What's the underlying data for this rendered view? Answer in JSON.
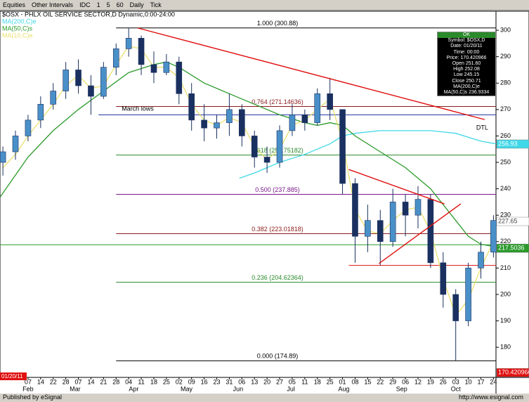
{
  "toolbar": {
    "items": [
      "Equities",
      "Other Intervals",
      "IDC",
      "1",
      "5",
      "60",
      "Daily",
      "Tick"
    ]
  },
  "chart_data": {
    "type": "candlestick",
    "title": "$OSX - PHLX OIL SERVICE SECTOR,D Dynamic,0:00-24:00",
    "cursor_date": "01/20/11",
    "up_color": "#4a90c8",
    "down_color": "#1a3060",
    "x": [
      -2,
      -1,
      0,
      1,
      2,
      3,
      4,
      5,
      6,
      7,
      8,
      9,
      10,
      11,
      12,
      13,
      14,
      15,
      16,
      17,
      18,
      19,
      20,
      21,
      22,
      23,
      24,
      25,
      26,
      27,
      28,
      29,
      30,
      31,
      32,
      33,
      34,
      35,
      36,
      37
    ],
    "open": [
      250,
      254,
      260,
      266,
      272,
      277,
      285,
      279,
      275,
      286,
      293,
      297,
      287,
      284,
      288,
      276,
      266,
      263,
      265,
      270,
      260,
      252,
      250,
      262,
      268,
      265,
      276,
      270,
      242,
      222,
      228,
      220,
      235,
      230,
      236,
      212,
      200,
      190,
      210,
      216
    ],
    "high": [
      256,
      262,
      268,
      275,
      280,
      288,
      289,
      283,
      288,
      295,
      301,
      298,
      292,
      291,
      290,
      280,
      272,
      268,
      276,
      272,
      262,
      256,
      264,
      272,
      270,
      278,
      282,
      270,
      244,
      234,
      232,
      240,
      238,
      241,
      238,
      216,
      202,
      212,
      220,
      230
    ],
    "low": [
      245,
      251,
      258,
      263,
      270,
      274,
      276,
      268,
      274,
      283,
      290,
      283,
      280,
      283,
      272,
      262,
      258,
      259,
      260,
      256,
      248,
      246,
      248,
      260,
      262,
      264,
      266,
      238,
      212,
      216,
      211,
      218,
      222,
      225,
      210,
      195,
      175,
      188,
      206,
      214
    ],
    "close": [
      254,
      260,
      266,
      272,
      277,
      285,
      279,
      275,
      286,
      293,
      297,
      287,
      284,
      288,
      276,
      266,
      263,
      265,
      270,
      260,
      252,
      250,
      262,
      268,
      265,
      276,
      270,
      242,
      222,
      228,
      220,
      235,
      230,
      236,
      212,
      200,
      190,
      210,
      216,
      228
    ],
    "series": [
      {
        "name": "MA(200,C)e",
        "color": "#40d8e8",
        "x": [
          16.8,
          18,
          20,
          22,
          24,
          25,
          26,
          28,
          30,
          32,
          34,
          36,
          37.2
        ],
        "values": [
          244,
          246,
          250,
          253,
          257,
          260,
          261,
          262,
          262,
          262,
          261,
          258,
          257
        ]
      },
      {
        "name": "MA(50,C)s",
        "color": "#2a9a2a",
        "x": [
          -2.2,
          0,
          2,
          4,
          6,
          8,
          10,
          11,
          12,
          14,
          16,
          18,
          20,
          22,
          23,
          24,
          25,
          26,
          28,
          30,
          32,
          34,
          35,
          36,
          37.2
        ],
        "values": [
          237,
          252,
          262,
          270,
          277,
          284,
          287,
          288,
          286,
          280,
          276,
          272,
          268,
          265,
          264,
          265,
          264,
          260,
          254,
          248,
          240,
          228,
          222,
          219,
          218
        ]
      },
      {
        "name": "MA(10,C)e",
        "color": "#e8e070",
        "x": [
          -2,
          -1,
          0,
          1,
          2,
          3,
          4,
          5,
          6,
          7,
          8,
          9,
          10,
          11,
          12,
          13,
          14,
          15,
          16,
          17,
          18,
          19,
          20,
          21,
          22,
          23,
          24,
          25,
          26,
          27,
          28,
          29,
          30,
          31,
          32,
          33,
          34,
          35,
          36,
          37
        ],
        "values": [
          248,
          253,
          260,
          266,
          272,
          279,
          283,
          278,
          279,
          287,
          294,
          293,
          286,
          286,
          282,
          272,
          266,
          264,
          267,
          265,
          256,
          251,
          255,
          264,
          266,
          270,
          274,
          258,
          232,
          224,
          223,
          228,
          232,
          233,
          224,
          206,
          192,
          198,
          210,
          220
        ]
      }
    ],
    "levels_start": 7.0,
    "levels": [
      {
        "label": "1.000 (300.88)",
        "value": 300.88,
        "color": "#000000"
      },
      {
        "label": "0.764 (271.14636)",
        "value": 271.14636,
        "color": "#8b1a1a"
      },
      {
        "label": "0.618 (252.75182)",
        "value": 252.75182,
        "color": "#2a8a2a"
      },
      {
        "label": "0.500 (237.885)",
        "value": 237.885,
        "color": "#7a1a8a"
      },
      {
        "label": "0.382 (223.01818)",
        "value": 223.01818,
        "color": "#8b1a1a"
      },
      {
        "label": "0.236 (204.62364)",
        "value": 204.62364,
        "color": "#2a8a2a"
      },
      {
        "label": "0.000 (174.89)",
        "value": 174.89,
        "color": "#000000"
      }
    ],
    "hlines": [
      {
        "label": "March lows",
        "value": 268,
        "color": "#2030a0",
        "start": 5.6
      },
      {
        "value": 218.8,
        "color": "#2a9a2a",
        "start": -2.23
      },
      {
        "value": 211,
        "color": "#e01010",
        "start": 25.5
      }
    ],
    "trendlines": [
      {
        "label": "DTL",
        "color": "#e01010",
        "x": [
          8.7,
          36.3
        ],
        "y": [
          300.88,
          266.2
        ]
      },
      {
        "color": "#e01010",
        "x": [
          25.5,
          33.1
        ],
        "y": [
          247.3,
          234.3
        ]
      },
      {
        "color": "#e01010",
        "x": [
          27.9,
          34.4
        ],
        "y": [
          211.7,
          234.3
        ]
      }
    ],
    "price_labels": [
      {
        "value": 256.93,
        "color": "#40d8e8"
      },
      {
        "value": 227.65,
        "color": "#ffffff"
      },
      {
        "value": 217.5036,
        "color": "#2a9a2a"
      },
      {
        "value": 170.420966,
        "color": "#e01010"
      }
    ],
    "xlim": [
      -2.23,
      37.2
    ],
    "ylim": [
      168.6,
      307.2
    ],
    "yticks": [
      180,
      190,
      200,
      210,
      220,
      230,
      240,
      250,
      260,
      270,
      280,
      290,
      300
    ],
    "xticks": [
      {
        "value": 0,
        "label": "07"
      },
      {
        "value": 1,
        "label": "14"
      },
      {
        "value": 2,
        "label": "22"
      },
      {
        "value": 3,
        "label": "28"
      },
      {
        "value": 4,
        "label": "07"
      },
      {
        "value": 5,
        "label": "14"
      },
      {
        "value": 6,
        "label": "21"
      },
      {
        "value": 7,
        "label": "28"
      },
      {
        "value": 8,
        "label": "04"
      },
      {
        "value": 9,
        "label": "11"
      },
      {
        "value": 10,
        "label": "18"
      },
      {
        "value": 11,
        "label": "25"
      },
      {
        "value": 12,
        "label": "02"
      },
      {
        "value": 13,
        "label": "09"
      },
      {
        "value": 14,
        "label": "16"
      },
      {
        "value": 15,
        "label": "23"
      },
      {
        "value": 16,
        "label": "31"
      },
      {
        "value": 17,
        "label": "06"
      },
      {
        "value": 18,
        "label": "13"
      },
      {
        "value": 19,
        "label": "20"
      },
      {
        "value": 20,
        "label": "27"
      },
      {
        "value": 21,
        "label": "05"
      },
      {
        "value": 22,
        "label": "11"
      },
      {
        "value": 23,
        "label": "18"
      },
      {
        "value": 24,
        "label": "25"
      },
      {
        "value": 25,
        "label": "01"
      },
      {
        "value": 26,
        "label": "08"
      },
      {
        "value": 27,
        "label": "15"
      },
      {
        "value": 28,
        "label": "22"
      },
      {
        "value": 29,
        "label": "29"
      },
      {
        "value": 30,
        "label": "06"
      },
      {
        "value": 31,
        "label": "12"
      },
      {
        "value": 32,
        "label": "19"
      },
      {
        "value": 33,
        "label": "26"
      },
      {
        "value": 34,
        "label": "03"
      },
      {
        "value": 35,
        "label": "10"
      },
      {
        "value": 36,
        "label": "17"
      },
      {
        "value": 37,
        "label": "24"
      }
    ],
    "month_labels": [
      {
        "value": 0,
        "label": "Feb"
      },
      {
        "value": 3.74,
        "label": "Mar"
      },
      {
        "value": 8.4,
        "label": "Apr"
      },
      {
        "value": 12.6,
        "label": "May"
      },
      {
        "value": 16.7,
        "label": "Jun"
      },
      {
        "value": 20.9,
        "label": "Jul"
      },
      {
        "value": 25.1,
        "label": "Aug"
      },
      {
        "value": 29.7,
        "label": "Sep"
      },
      {
        "value": 34,
        "label": "Oct"
      }
    ],
    "info_box": [
      "OK",
      "Symbol: $OSX,D",
      "Date: 01/20/11",
      "Time: 00:00",
      "Price: 170.420966",
      "Open 251.60",
      "High 252.08",
      "Low 245.15",
      "Close 250.71",
      "MA(200,C)e",
      "MA(50,C)s 236.9334"
    ]
  },
  "footer": {
    "published": "Published by eSignal",
    "url": "http://www.esignal.com"
  }
}
